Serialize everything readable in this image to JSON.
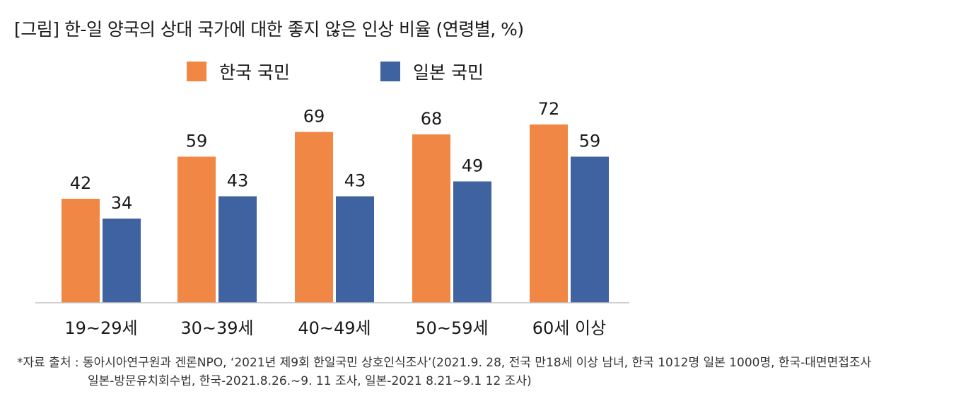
{
  "title": "[그림] 한-일 양국의 상대 국가에 대한 좋지 않은 인상 비율 (연령별, %)",
  "chart_data": {
    "type": "bar",
    "categories": [
      "19~29세",
      "30~39세",
      "40~49세",
      "50~59세",
      "60세 이상"
    ],
    "series": [
      {
        "name": "한국 국민",
        "values": [
          42,
          59,
          69,
          68,
          72
        ],
        "color": "#F08744"
      },
      {
        "name": "일본 국민",
        "values": [
          34,
          43,
          43,
          49,
          59
        ],
        "color": "#3F62A0"
      }
    ],
    "ylim": [
      0,
      100
    ],
    "grid": false,
    "legend_position": "top-center"
  },
  "source": {
    "line1": "*자료 출처 : 동아시아연구원과 겐론NPO, ‘2021년 제9회 한일국민 상호인식조사’(2021.9. 28, 전국 만18세 이상 남녀, 한국 1012명 일본 1000명, 한국-대면면접조사",
    "line2": "일본-방문유치회수법, 한국-2021.8.26.~9. 11 조사, 일본-2021 8.21~9.1 12 조사)"
  }
}
